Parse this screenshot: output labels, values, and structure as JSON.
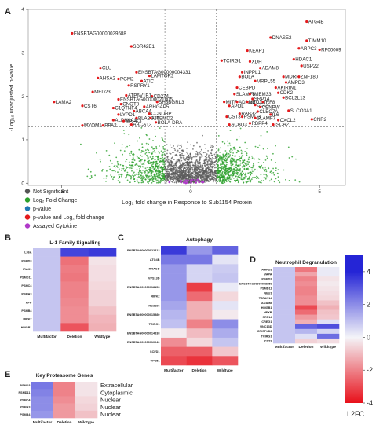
{
  "chart_data": [
    {
      "panel": "A",
      "type": "scatter",
      "xlabel": "Log₂ fold change in Response to Sub1154 Protein",
      "ylabel": "-Log₁₀ unadjusted p-value",
      "xlim": [
        -6.3,
        6.0
      ],
      "ylim": [
        -0.05,
        4.0
      ],
      "x_ticks": [
        -5,
        0,
        5
      ],
      "y_ticks": [
        0,
        1,
        2,
        3,
        4
      ],
      "thresholds": {
        "fold_change": [
          -1,
          1
        ],
        "p_value": 1.3
      },
      "legend_entries": [
        {
          "name": "Not Significant",
          "color": "#555555"
        },
        {
          "name": "Log₂ Fold Change",
          "color": "#2ca02c"
        },
        {
          "name": "p-value",
          "color": "#1f77b4"
        },
        {
          "name": "p-value and Log₂ fold change",
          "color": "#e41a1c"
        },
        {
          "name": "Assayed Cytokine",
          "color": "#b03ac9"
        }
      ],
      "labeled_points": [
        {
          "gene": "ENSBTAG00000039588",
          "x": -4.6,
          "y": 3.45
        },
        {
          "gene": "SDR42E1",
          "x": -2.3,
          "y": 3.15
        },
        {
          "gene": "CLU",
          "x": -3.5,
          "y": 2.65
        },
        {
          "gene": "ENSBTAG00000004331",
          "x": -2.1,
          "y": 2.55
        },
        {
          "gene": "AHSA2",
          "x": -3.6,
          "y": 2.42
        },
        {
          "gene": "PGM2",
          "x": -2.8,
          "y": 2.4
        },
        {
          "gene": "LAMTOR2",
          "x": -1.6,
          "y": 2.47
        },
        {
          "gene": "ATIC",
          "x": -1.9,
          "y": 2.35
        },
        {
          "gene": "RSPRY1",
          "x": -2.4,
          "y": 2.25
        },
        {
          "gene": "MED23",
          "x": -3.8,
          "y": 2.1
        },
        {
          "gene": "ATP6V1B1",
          "x": -2.5,
          "y": 2.02
        },
        {
          "gene": "CD274",
          "x": -1.5,
          "y": 2.0
        },
        {
          "gene": "ENSBTAG00000021805",
          "x": -2.8,
          "y": 1.93
        },
        {
          "gene": "LAMA2",
          "x": -5.3,
          "y": 1.87
        },
        {
          "gene": "SH3BGRL3",
          "x": -1.3,
          "y": 1.87
        },
        {
          "gene": "CST6",
          "x": -4.2,
          "y": 1.78
        },
        {
          "gene": "CNOT8",
          "x": -2.7,
          "y": 1.82
        },
        {
          "gene": "C1QTNF4",
          "x": -3.0,
          "y": 1.73
        },
        {
          "gene": "ARHGAP5",
          "x": -1.8,
          "y": 1.76
        },
        {
          "gene": "ABCA4",
          "x": -2.2,
          "y": 1.66
        },
        {
          "gene": "LYPD1",
          "x": -2.8,
          "y": 1.58
        },
        {
          "gene": "CCNDBP1",
          "x": -1.6,
          "y": 1.6
        },
        {
          "gene": "PLA2G16",
          "x": -2.1,
          "y": 1.5
        },
        {
          "gene": "MTEMD2",
          "x": -1.55,
          "y": 1.5
        },
        {
          "gene": "ALDH3A1",
          "x": -3.0,
          "y": 1.45
        },
        {
          "gene": "MAPK3",
          "x": -2.6,
          "y": 1.43
        },
        {
          "gene": "BOLA-DRA",
          "x": -1.35,
          "y": 1.4
        },
        {
          "gene": "MYOM1",
          "x": -4.2,
          "y": 1.33
        },
        {
          "gene": "PPA2",
          "x": -3.4,
          "y": 1.33
        },
        {
          "gene": "ABCA12",
          "x": -2.3,
          "y": 1.35
        },
        {
          "gene": "ATG4B",
          "x": 4.5,
          "y": 3.72
        },
        {
          "gene": "DNASE2",
          "x": 3.1,
          "y": 3.35
        },
        {
          "gene": "TIMM10",
          "x": 4.5,
          "y": 3.28
        },
        {
          "gene": "ARPC3",
          "x": 4.2,
          "y": 3.1
        },
        {
          "gene": "RF00009",
          "x": 5.0,
          "y": 3.07
        },
        {
          "gene": "KEAP1",
          "x": 2.2,
          "y": 3.05
        },
        {
          "gene": "TCIRG1",
          "x": 1.2,
          "y": 2.82
        },
        {
          "gene": "XDH",
          "x": 2.3,
          "y": 2.8
        },
        {
          "gene": "HDAC1",
          "x": 4.0,
          "y": 2.85
        },
        {
          "gene": "USP22",
          "x": 4.3,
          "y": 2.7
        },
        {
          "gene": "ADAM8",
          "x": 2.7,
          "y": 2.65
        },
        {
          "gene": "INPPL1",
          "x": 2.0,
          "y": 2.55
        },
        {
          "gene": "BOLA",
          "x": 1.9,
          "y": 2.45
        },
        {
          "gene": "MDRR",
          "x": 3.6,
          "y": 2.45
        },
        {
          "gene": "ZNF180",
          "x": 4.2,
          "y": 2.45
        },
        {
          "gene": "MRPL55",
          "x": 2.5,
          "y": 2.35
        },
        {
          "gene": "AMPD3",
          "x": 3.7,
          "y": 2.32
        },
        {
          "gene": "CEBPD",
          "x": 1.8,
          "y": 2.2
        },
        {
          "gene": "AKIRIN1",
          "x": 3.3,
          "y": 2.2
        },
        {
          "gene": "CDK2",
          "x": 3.4,
          "y": 2.08
        },
        {
          "gene": "SLAMF6",
          "x": 1.7,
          "y": 2.05
        },
        {
          "gene": "TMEM33",
          "x": 2.3,
          "y": 2.05
        },
        {
          "gene": "BCL2L13",
          "x": 3.6,
          "y": 1.97
        },
        {
          "gene": "SRP14",
          "x": 2.4,
          "y": 1.94
        },
        {
          "gene": "MITF",
          "x": 1.3,
          "y": 1.87
        },
        {
          "gene": "ADAM3",
          "x": 1.8,
          "y": 1.87
        },
        {
          "gene": "NEU1",
          "x": 2.2,
          "y": 1.87
        },
        {
          "gene": "IRF8",
          "x": 2.8,
          "y": 1.87
        },
        {
          "gene": "APOL",
          "x": 1.5,
          "y": 1.78
        },
        {
          "gene": "CCL4",
          "x": 2.5,
          "y": 1.8
        },
        {
          "gene": "CENPW",
          "x": 2.7,
          "y": 1.75
        },
        {
          "gene": "SLCO3A1",
          "x": 3.8,
          "y": 1.67
        },
        {
          "gene": "CLEC7A",
          "x": 2.6,
          "y": 1.65
        },
        {
          "gene": "RAB32",
          "x": 1.9,
          "y": 1.6
        },
        {
          "gene": "IL6",
          "x": 3.1,
          "y": 1.58
        },
        {
          "gene": "CST3",
          "x": 1.4,
          "y": 1.53
        },
        {
          "gene": "PSMD3",
          "x": 2.0,
          "y": 1.53
        },
        {
          "gene": "SLAMF7",
          "x": 2.5,
          "y": 1.5
        },
        {
          "gene": "CXCL2",
          "x": 3.4,
          "y": 1.45
        },
        {
          "gene": "CNR2",
          "x": 4.7,
          "y": 1.47
        },
        {
          "gene": "ACBD3",
          "x": 1.5,
          "y": 1.35
        },
        {
          "gene": "RBPP4",
          "x": 2.3,
          "y": 1.38
        },
        {
          "gene": "ISCA2",
          "x": 3.2,
          "y": 1.35
        }
      ]
    },
    {
      "panel": "B",
      "type": "heatmap",
      "title": "IL-1 Family Signalling",
      "rows": [
        "IL36A",
        "PSMD3",
        "IRAK1",
        "PSMD11",
        "PSMC4",
        "PSMA3",
        "APP",
        "PSMB4",
        "RIPK2",
        "HMGB1"
      ],
      "columns": [
        "Multifactor",
        "Deletion",
        "Wildtype"
      ],
      "values": [
        [
          0.9,
          3.4,
          3.6
        ],
        [
          0.9,
          -2.3,
          -0.3
        ],
        [
          0.9,
          -2.1,
          -0.4
        ],
        [
          0.9,
          -2.2,
          -0.4
        ],
        [
          0.9,
          -2.0,
          -0.5
        ],
        [
          0.9,
          -2.0,
          -0.6
        ],
        [
          0.9,
          -1.9,
          -0.6
        ],
        [
          0.9,
          -1.8,
          -0.9
        ],
        [
          0.9,
          -1.8,
          -1.1
        ],
        [
          0.9,
          -2.8,
          -1.2
        ]
      ]
    },
    {
      "panel": "C",
      "type": "heatmap",
      "title": "Autophagy",
      "rows": [
        "ENSBTAG00000022813",
        "ATG4B",
        "RRAGD",
        "VPS13D",
        "ENSBTAG00000018153",
        "RIPK2",
        "RG3196",
        "ENSBTAG00000015580",
        "TCIRG1",
        "ENSBTAG00000014838",
        "ENSBTAG00000010040",
        "SCFD1",
        "VPS51"
      ],
      "columns": [
        "Multifactor",
        "Deletion",
        "Wildtype"
      ],
      "values": [
        [
          3.6,
          1.8,
          2.8
        ],
        [
          2.4,
          2.4,
          0.3
        ],
        [
          1.8,
          0.6,
          0.8
        ],
        [
          1.8,
          0.6,
          0.9
        ],
        [
          1.8,
          -3.2,
          0.2
        ],
        [
          1.8,
          -2.4,
          -0.5
        ],
        [
          1.5,
          -1.2,
          0.3
        ],
        [
          1.2,
          -1.2,
          -0.2
        ],
        [
          1.0,
          -2.0,
          2.0
        ],
        [
          -0.2,
          -1.0,
          1.4
        ],
        [
          -1.8,
          -0.5,
          0.9
        ],
        [
          -2.6,
          -2.6,
          -0.8
        ],
        [
          -3.0,
          -3.4,
          -2.8
        ]
      ]
    },
    {
      "panel": "D",
      "type": "heatmap",
      "title": "Neutrophil Degranulation",
      "rows": [
        "AMPD3",
        "VAPA",
        "PSMD3",
        "ENSBTAG00000008859",
        "PSMD11",
        "NEU1",
        "TSPAN14",
        "ADAM8",
        "HMGB1",
        "HEXB",
        "SRP14",
        "CREG1",
        "UNC13D",
        "CRISPLD2",
        "TCIRG1",
        "CST3"
      ],
      "columns": [
        "Multifactor",
        "Deletion",
        "Wildtype"
      ],
      "values": [
        [
          0.9,
          -2.2,
          0.2
        ],
        [
          0.9,
          -1.4,
          0.2
        ],
        [
          0.9,
          -2.0,
          -0.3
        ],
        [
          0.9,
          -1.8,
          -0.2
        ],
        [
          0.9,
          -2.0,
          -0.3
        ],
        [
          0.9,
          -2.0,
          -0.4
        ],
        [
          0.9,
          -1.8,
          -0.5
        ],
        [
          0.9,
          -1.8,
          -0.9
        ],
        [
          0.9,
          -3.0,
          -1.2
        ],
        [
          0.9,
          -2.4,
          -0.9
        ],
        [
          0.9,
          -1.6,
          -0.8
        ],
        [
          0.9,
          -1.2,
          0.4
        ],
        [
          0.9,
          2.8,
          3.2
        ],
        [
          0.9,
          1.2,
          0.6
        ],
        [
          0.9,
          0.4,
          2.6
        ],
        [
          0.9,
          -0.6,
          -0.4
        ]
      ]
    },
    {
      "panel": "E",
      "type": "heatmap",
      "title": "Key Proteasome Genes",
      "rows": [
        "PSMD3",
        "PSMD11",
        "PSMC4",
        "PSMA3",
        "PSMB4"
      ],
      "row_annotations": [
        "Extracellular",
        "Cytoplasmic",
        "Nuclear",
        "Nuclear",
        "Nuclear"
      ],
      "columns": [
        "Multifactor",
        "Deletion",
        "Wildtype"
      ],
      "values": [
        [
          2.4,
          -2.0,
          -0.3
        ],
        [
          2.2,
          -2.0,
          -0.3
        ],
        [
          2.0,
          -1.8,
          -0.5
        ],
        [
          2.0,
          -1.6,
          -0.6
        ],
        [
          1.8,
          -1.6,
          -0.9
        ]
      ]
    },
    {
      "type": "colorbar",
      "title": "L2FC",
      "range": [
        -4,
        5
      ],
      "ticks": [
        4,
        2,
        0,
        -2,
        -4
      ],
      "colors": {
        "high": "#2525d6",
        "mid": "#f4f4f8",
        "low": "#e8101a"
      }
    }
  ]
}
